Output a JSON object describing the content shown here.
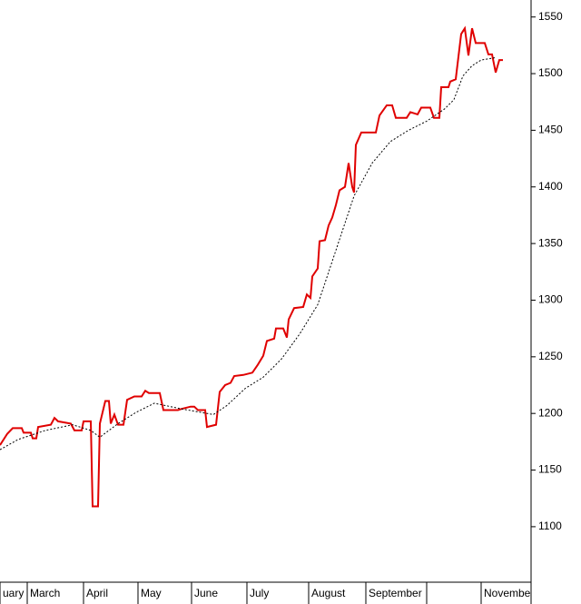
{
  "chart_data": {
    "type": "line",
    "series": [
      {
        "color": "#e00000",
        "dash": false,
        "x": [
          0,
          3.2,
          5.6,
          9.6,
          10.4,
          13.6,
          14.4,
          16,
          16.8,
          22.4,
          24,
          25.6,
          31.2,
          32.8,
          36,
          36.8,
          40,
          40.8,
          43.2,
          44,
          46.4,
          48,
          48.8,
          50.4,
          52,
          54.4,
          56,
          59.2,
          62.4,
          64,
          65.6,
          70.4,
          72,
          78.4,
          80,
          84,
          85.6,
          87.2,
          90.4,
          91.2,
          95.2,
          96.8,
          99.2,
          101.6,
          103.2,
          107.2,
          111.2,
          113.6,
          116,
          117.6,
          120.8,
          121.6,
          124.8,
          126.4,
          127.2,
          129.6,
          133.6,
          135.2,
          136.8,
          137.6,
          140,
          140.8,
          143.2,
          144.8,
          146.4,
          148,
          149.6,
          152,
          153.6,
          155.2,
          156,
          156.8,
          159.2,
          165.6,
          167.2,
          170.4,
          172.8,
          174.4,
          179.2,
          180.8,
          184,
          185.6,
          189.6,
          191.2,
          193.6,
          194.4,
          197.6,
          198.4,
          200.8,
          203.2,
          204.8,
          206.4,
          208,
          209.6,
          213.6,
          215.2,
          216.8,
          218.4,
          220,
          221.6
        ],
        "values": [
          1172,
          1182,
          1187,
          1187,
          1183,
          1183,
          1178,
          1178,
          1188,
          1190,
          1196,
          1193,
          1191,
          1185,
          1185,
          1193,
          1193,
          1118,
          1118,
          1191,
          1211,
          1211,
          1191,
          1199,
          1190,
          1190,
          1212,
          1215,
          1215,
          1220,
          1218,
          1218,
          1203,
          1203,
          1204,
          1206,
          1206,
          1203,
          1203,
          1188,
          1190,
          1219,
          1225,
          1227,
          1233,
          1234,
          1236,
          1243,
          1251,
          1264,
          1266,
          1275,
          1275,
          1267,
          1283,
          1293,
          1294,
          1305,
          1302,
          1321,
          1328,
          1352,
          1353,
          1366,
          1373,
          1384,
          1397,
          1400,
          1421,
          1400,
          1395,
          1437,
          1448,
          1448,
          1463,
          1472,
          1472,
          1461,
          1461,
          1466,
          1464,
          1470,
          1470,
          1461,
          1461,
          1488,
          1488,
          1493,
          1495,
          1535,
          1540,
          1516,
          1540,
          1527,
          1527,
          1517,
          1517,
          1501,
          1512,
          1512
        ]
      },
      {
        "color": "#000000",
        "dash": true,
        "x": [
          0,
          8,
          20,
          32,
          40,
          44,
          52,
          60,
          68,
          80,
          94,
          100,
          108,
          116,
          124,
          132,
          140,
          148,
          156,
          164,
          172,
          180,
          188,
          196,
          200,
          204,
          208,
          212,
          218
        ],
        "values": [
          1168,
          1177,
          1185,
          1190,
          1185,
          1179,
          1191,
          1201,
          1209,
          1204,
          1199,
          1207,
          1222,
          1232,
          1248,
          1270,
          1296,
          1344,
          1392,
          1421,
          1440,
          1450,
          1458,
          1469,
          1477,
          1498,
          1507,
          1512,
          1514
        ]
      }
    ],
    "xlim": [
      0,
      234
    ],
    "xticks": [
      {
        "value": 0,
        "label": "uary"
      },
      {
        "value": 12,
        "label": "March"
      },
      {
        "value": 36.8,
        "label": "April"
      },
      {
        "value": 60.8,
        "label": "May"
      },
      {
        "value": 84.4,
        "label": "June"
      },
      {
        "value": 108.8,
        "label": "July"
      },
      {
        "value": 136,
        "label": "August"
      },
      {
        "value": 161.2,
        "label": "September"
      },
      {
        "value": 188,
        "label": null
      },
      {
        "value": 212,
        "label": "Novembe"
      }
    ],
    "ylim": [
      1051,
      1565
    ],
    "yticks": [
      1100,
      1150,
      1200,
      1250,
      1300,
      1350,
      1400,
      1450,
      1500,
      1550
    ]
  }
}
